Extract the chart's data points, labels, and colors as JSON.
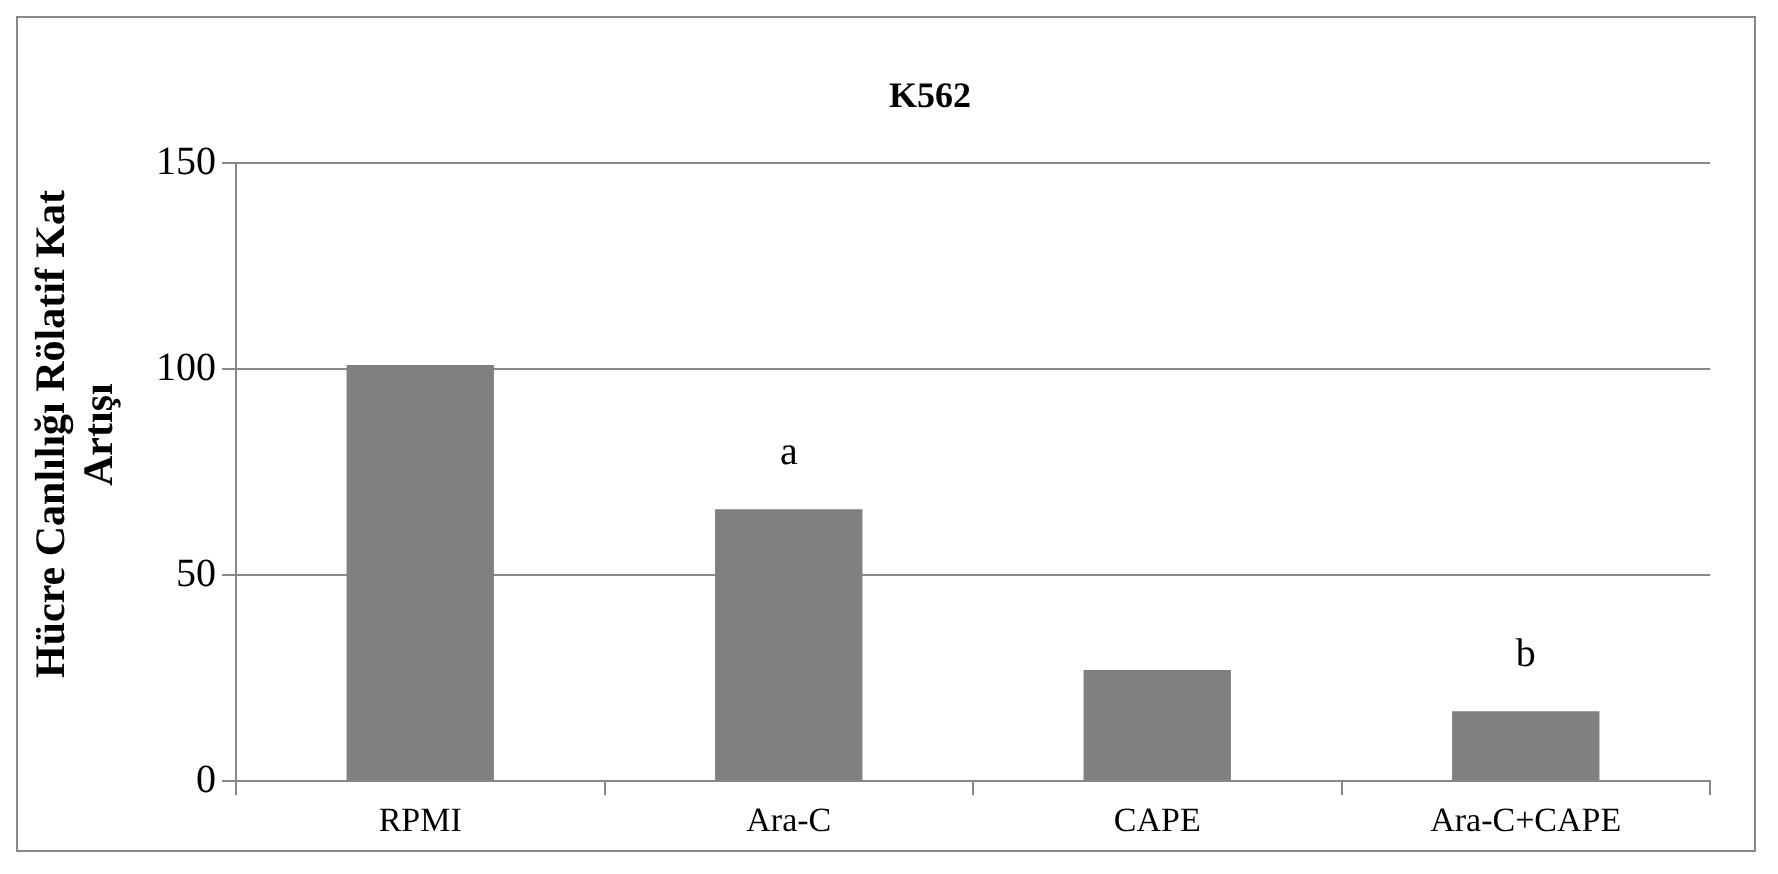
{
  "chart_data": {
    "type": "bar",
    "title": "K562",
    "ylabel": "Hücre Canlılığı Rölatif Kat Artışı",
    "categories": [
      "RPMI",
      "Ara-C",
      "CAPE",
      "Ara-C+CAPE"
    ],
    "values": [
      101,
      66,
      27,
      17
    ],
    "color": "#808080",
    "ylim": [
      0,
      150
    ],
    "yticks": [
      0,
      50,
      100,
      150
    ],
    "grid": "y",
    "annotations": [
      {
        "text": "a",
        "x": "Ara-C",
        "y": 66
      },
      {
        "text": "b",
        "x": "Ara-C+CAPE",
        "y": 17
      }
    ]
  }
}
